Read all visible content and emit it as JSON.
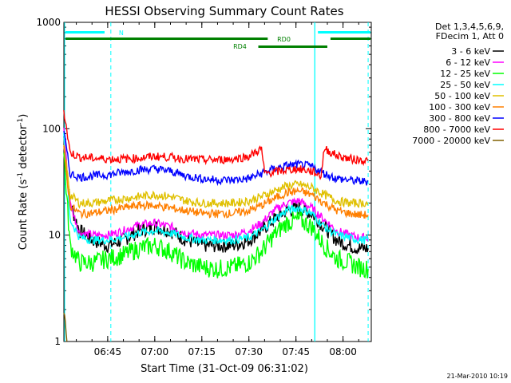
{
  "chart_data": {
    "type": "line",
    "title": "HESSI Observing Summary Count Rates",
    "xlabel": "Start Time (31-Oct-09 06:31:02)",
    "ylabel_main": "Count Rate (s",
    "ylabel_sup1": "-1",
    "ylabel_mid": " detector",
    "ylabel_sup2": "-1",
    "ylabel_end": ")",
    "y_scale": "log",
    "ylim": [
      1,
      1000
    ],
    "xlim": [
      "06:31:02",
      "08:09:00"
    ],
    "x_ticks": [
      "06:45",
      "07:00",
      "07:15",
      "07:30",
      "07:45",
      "08:00"
    ],
    "y_ticks": [
      "1",
      "10",
      "100",
      "1000"
    ],
    "legend_header": [
      "Det 1,3,4,5,6,9,",
      "FDecim 1, Att 0"
    ],
    "series": [
      {
        "name": "3 - 6 keV",
        "color": "#000000",
        "x": [
          "06:31",
          "06:33",
          "06:36",
          "06:40",
          "06:45",
          "06:50",
          "06:55",
          "07:00",
          "07:05",
          "07:10",
          "07:15",
          "07:20",
          "07:25",
          "07:30",
          "07:34",
          "07:38",
          "07:42",
          "07:46",
          "07:50",
          "07:54",
          "07:58",
          "08:02",
          "08:05",
          "08:08"
        ],
        "y": [
          85,
          20,
          11,
          9,
          8,
          9,
          11,
          12,
          11,
          9,
          8,
          8,
          8,
          9,
          11,
          14,
          17,
          18,
          16,
          12,
          9,
          8,
          7.5,
          7.5
        ]
      },
      {
        "name": "6 - 12 keV",
        "color": "#ff00ff",
        "x": [
          "06:31",
          "06:33",
          "06:36",
          "06:40",
          "06:45",
          "06:50",
          "06:55",
          "07:00",
          "07:05",
          "07:10",
          "07:15",
          "07:20",
          "07:25",
          "07:30",
          "07:34",
          "07:38",
          "07:42",
          "07:46",
          "07:50",
          "07:54",
          "07:58",
          "08:02",
          "08:05",
          "08:08"
        ],
        "y": [
          100,
          20,
          10.5,
          10,
          10,
          11,
          12.5,
          13,
          12,
          10.5,
          10,
          10,
          10,
          11,
          13,
          17,
          20,
          21,
          18,
          14,
          11,
          10,
          9.5,
          9.5
        ]
      },
      {
        "name": "12 - 25 keV",
        "color": "#00ff00",
        "x": [
          "06:31",
          "06:33",
          "06:36",
          "06:40",
          "06:45",
          "06:50",
          "06:55",
          "07:00",
          "07:05",
          "07:10",
          "07:15",
          "07:20",
          "07:25",
          "07:30",
          "07:34",
          "07:38",
          "07:42",
          "07:46",
          "07:50",
          "07:54",
          "07:58",
          "08:02",
          "08:05",
          "08:08"
        ],
        "y": [
          60,
          8,
          5.5,
          5.5,
          6,
          6.5,
          7.5,
          8,
          7,
          5.5,
          5,
          4.8,
          5,
          5.5,
          7,
          10,
          13,
          14,
          12,
          8,
          6,
          5.5,
          5,
          4.8
        ]
      },
      {
        "name": "25 - 50 keV",
        "color": "#00ffff",
        "x": [
          "06:31",
          "06:33",
          "06:36",
          "06:40",
          "06:45",
          "06:50",
          "06:55",
          "07:00",
          "07:05",
          "07:10",
          "07:15",
          "07:20",
          "07:25",
          "07:30",
          "07:34",
          "07:38",
          "07:42",
          "07:46",
          "07:50",
          "07:54",
          "07:58",
          "08:02",
          "08:05",
          "08:08"
        ],
        "y": [
          90,
          14,
          9.5,
          9,
          9,
          9.5,
          10.5,
          11,
          10.5,
          9.5,
          9,
          9,
          9,
          9.5,
          11,
          14,
          17,
          18,
          16,
          12,
          10,
          9.5,
          9,
          9
        ]
      },
      {
        "name": "50 - 100 keV",
        "color": "#e0c000",
        "x": [
          "06:31",
          "06:33",
          "06:36",
          "06:40",
          "06:45",
          "06:50",
          "06:55",
          "07:00",
          "07:05",
          "07:10",
          "07:15",
          "07:20",
          "07:25",
          "07:30",
          "07:34",
          "07:38",
          "07:42",
          "07:46",
          "07:50",
          "07:54",
          "07:58",
          "08:02",
          "08:05",
          "08:08"
        ],
        "y": [
          70,
          24,
          20,
          20,
          21,
          22,
          23,
          24,
          23,
          21,
          20,
          20,
          20,
          21,
          23,
          26,
          29,
          30,
          28,
          24,
          21,
          20,
          20,
          20
        ]
      },
      {
        "name": "100 - 300 keV",
        "color": "#ff7f00",
        "x": [
          "06:31",
          "06:33",
          "06:36",
          "06:40",
          "06:45",
          "06:50",
          "06:55",
          "07:00",
          "07:05",
          "07:10",
          "07:15",
          "07:20",
          "07:25",
          "07:30",
          "07:34",
          "07:38",
          "07:42",
          "07:46",
          "07:50",
          "07:54",
          "07:58",
          "08:02",
          "08:05",
          "08:08"
        ],
        "y": [
          65,
          19,
          16,
          16,
          17,
          18,
          19,
          19,
          18,
          17,
          16,
          16,
          16,
          17,
          19,
          22,
          25,
          26,
          24,
          20,
          17,
          16,
          15.5,
          15.5
        ]
      },
      {
        "name": "300 - 800 keV",
        "color": "#0000ff",
        "x": [
          "06:31",
          "06:33",
          "06:36",
          "06:40",
          "06:45",
          "06:50",
          "06:55",
          "07:00",
          "07:05",
          "07:10",
          "07:15",
          "07:20",
          "07:25",
          "07:30",
          "07:34",
          "07:38",
          "07:42",
          "07:46",
          "07:50",
          "07:54",
          "07:58",
          "08:02",
          "08:05",
          "08:08"
        ],
        "y": [
          95,
          38,
          35,
          36,
          37,
          39,
          41,
          42,
          40,
          36,
          34,
          33,
          33,
          34,
          38,
          42,
          45,
          46,
          44,
          38,
          34,
          33,
          32,
          32
        ]
      },
      {
        "name": "800 - 7000 keV",
        "color": "#ff0000",
        "x": [
          "06:31",
          "06:33",
          "06:36",
          "06:40",
          "06:45",
          "06:50",
          "06:55",
          "07:00",
          "07:05",
          "07:10",
          "07:15",
          "07:20",
          "07:25",
          "07:30",
          "07:34",
          "07:35",
          "07:40",
          "07:45",
          "07:50",
          "07:53",
          "07:54",
          "07:58",
          "08:02",
          "08:05",
          "08:08"
        ],
        "y": [
          150,
          60,
          54,
          53,
          52,
          52,
          53,
          55,
          54,
          52,
          51,
          51,
          52,
          55,
          65,
          38,
          40,
          42,
          40,
          36,
          65,
          56,
          52,
          51,
          50
        ]
      },
      {
        "name": "7000 - 20000 keV",
        "color": "#806000",
        "x": [
          "06:31",
          "06:32"
        ],
        "y": [
          2,
          1
        ]
      }
    ],
    "states": [
      {
        "label": "N",
        "color": "#00ffff"
      },
      {
        "label": "RD0",
        "color": "#008000"
      },
      {
        "label": "RD4",
        "color": "#008000"
      }
    ],
    "timestamp": "21-Mar-2010 10:19"
  }
}
